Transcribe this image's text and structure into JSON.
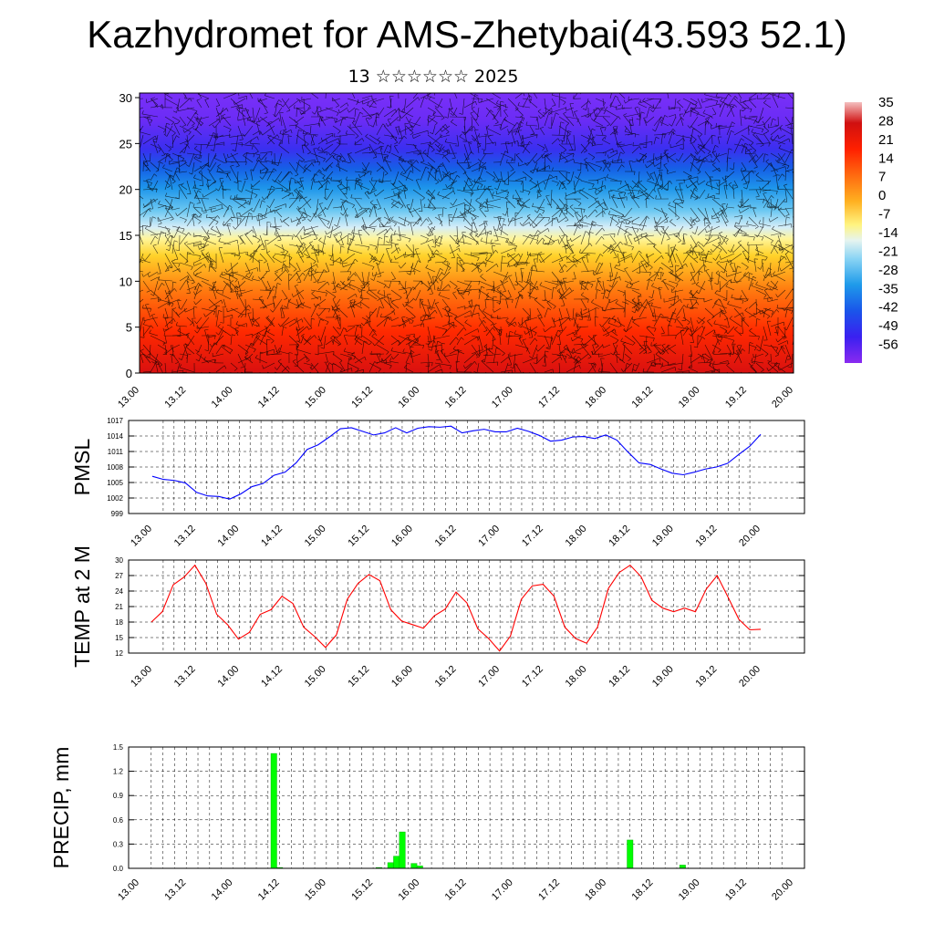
{
  "title": "Kazhydromet for AMS-Zhetybai(43.593 52.1)",
  "subtitle": "13 ☆☆☆☆☆☆ 2025",
  "colors": {
    "pmsl_line": "#0000ff",
    "temp_line": "#ff0000",
    "precip_bar": "#00ff00",
    "grid": "#000000"
  },
  "chart_data": [
    {
      "type": "heatmap",
      "name": "cross-section",
      "x_ticks": [
        "13.00",
        "13.12",
        "14.00",
        "14.12",
        "15.00",
        "15.12",
        "16.00",
        "16.12",
        "17.00",
        "17.12",
        "18.00",
        "18.12",
        "19.00",
        "19.12",
        "20.00"
      ],
      "y_ticks": [
        0,
        5,
        10,
        15,
        20,
        25,
        30
      ],
      "ylim": [
        0,
        30.5
      ],
      "colorbar_labels": [
        "35",
        "28",
        "21",
        "14",
        "7",
        "0",
        "-7",
        "-14",
        "-21",
        "-28",
        "-35",
        "-42",
        "-49",
        "-56"
      ],
      "colorbar_range": [
        -63,
        35
      ],
      "overlay": "wind barbs"
    },
    {
      "type": "line",
      "name": "pmsl",
      "ylabel": "PMSL",
      "y_ticks": [
        999,
        1002,
        1005,
        1008,
        1011,
        1014,
        1017
      ],
      "ylim": [
        999,
        1017
      ],
      "x_ticks": [
        "13.00",
        "13.12",
        "14.00",
        "14.12",
        "15.00",
        "15.12",
        "16.00",
        "16.12",
        "17.00",
        "17.12",
        "18.00",
        "18.12",
        "19.00",
        "19.12",
        "20.00"
      ],
      "values": [
        1006.2,
        1005.6,
        1005.4,
        1004.9,
        1003.1,
        1002.4,
        1002.3,
        1001.8,
        1002.8,
        1004.2,
        1004.8,
        1006.4,
        1007.0,
        1008.8,
        1011.4,
        1012.3,
        1013.8,
        1015.4,
        1015.6,
        1014.9,
        1014.2,
        1014.6,
        1015.6,
        1014.6,
        1015.5,
        1015.8,
        1015.7,
        1015.9,
        1014.6,
        1015.0,
        1015.3,
        1014.8,
        1014.8,
        1015.5,
        1014.9,
        1014.1,
        1013.0,
        1013.2,
        1013.8,
        1013.9,
        1013.5,
        1014.2,
        1013.2,
        1010.9,
        1008.8,
        1008.5,
        1007.6,
        1006.8,
        1006.5,
        1007.0,
        1007.6,
        1008.0,
        1008.7,
        1010.4,
        1012.0,
        1014.3
      ]
    },
    {
      "type": "line",
      "name": "temp",
      "ylabel": "TEMP at 2 M",
      "y_ticks": [
        12,
        15,
        18,
        21,
        24,
        27,
        30
      ],
      "ylim": [
        12,
        30
      ],
      "x_ticks": [
        "13.00",
        "13.12",
        "14.00",
        "14.12",
        "15.00",
        "15.12",
        "16.00",
        "16.12",
        "17.00",
        "17.12",
        "18.00",
        "18.12",
        "19.00",
        "19.12",
        "20.00"
      ],
      "values": [
        18.0,
        20.0,
        25.2,
        26.7,
        29.0,
        25.5,
        19.5,
        17.5,
        14.7,
        16.0,
        19.5,
        20.4,
        23.0,
        21.6,
        17.0,
        15.2,
        13.1,
        15.5,
        22.4,
        25.5,
        27.2,
        26.0,
        20.4,
        18.2,
        17.5,
        16.8,
        19.2,
        20.5,
        23.8,
        21.7,
        16.7,
        14.8,
        12.4,
        15.3,
        22.4,
        25.0,
        25.3,
        23.0,
        17.0,
        14.8,
        13.9,
        17.0,
        24.5,
        27.6,
        29.0,
        26.8,
        22.2,
        20.7,
        20.0,
        20.7,
        20.0,
        24.4,
        27.0,
        22.8,
        18.5,
        16.5,
        16.6
      ]
    },
    {
      "type": "bar",
      "name": "precip",
      "ylabel": "PRECIP, mm",
      "y_ticks": [
        "0.0",
        "0.3",
        "0.6",
        "0.9",
        "1.2",
        "1.5"
      ],
      "ylim": [
        0,
        1.5
      ],
      "x_ticks": [
        "13.00",
        "13.12",
        "14.00",
        "14.12",
        "15.00",
        "15.12",
        "16.00",
        "16.12",
        "17.00",
        "17.12",
        "18.00",
        "18.12",
        "19.00",
        "19.12",
        "20.00"
      ],
      "values": [
        0,
        0,
        0,
        0,
        0,
        0,
        0,
        0,
        0,
        0,
        0,
        0,
        0,
        0,
        0,
        0,
        0,
        0,
        0,
        0,
        0,
        0,
        0,
        1.42,
        0.01,
        0,
        0,
        0,
        0,
        0,
        0,
        0,
        0,
        0,
        0,
        0,
        0,
        0,
        0,
        0,
        0,
        0.01,
        0,
        0.07,
        0.15,
        0.45,
        0,
        0.06,
        0.03,
        0,
        0,
        0,
        0,
        0,
        0,
        0,
        0,
        0,
        0,
        0,
        0,
        0,
        0,
        0,
        0,
        0,
        0,
        0,
        0,
        0,
        0,
        0,
        0,
        0,
        0,
        0,
        0,
        0,
        0,
        0,
        0,
        0,
        0,
        0,
        0.35,
        0,
        0,
        0,
        0,
        0,
        0,
        0,
        0,
        0.04,
        0,
        0,
        0,
        0,
        0,
        0,
        0,
        0,
        0,
        0,
        0,
        0,
        0,
        0,
        0,
        0,
        0,
        0,
        0
      ]
    }
  ]
}
